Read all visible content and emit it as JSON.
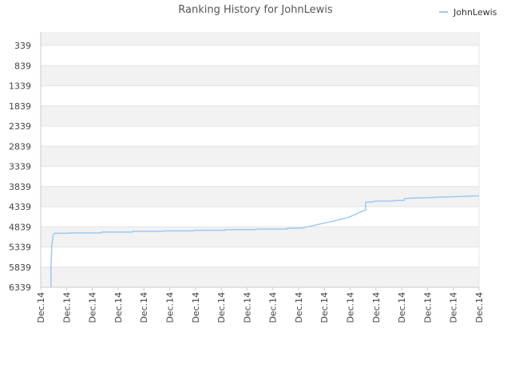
{
  "chart_data": {
    "type": "line",
    "title": "Ranking History for JohnLewis",
    "legend": {
      "position": "top-right",
      "entries": [
        "JohnLewis"
      ]
    },
    "colors": {
      "series": "#9ec9f1",
      "band": "#f2f2f2",
      "grid": "#e4e4e4",
      "axis": "#cccccc"
    },
    "y_axis": {
      "inverted": true,
      "range": [
        339,
        6339
      ],
      "ticks": [
        339,
        839,
        1339,
        1839,
        2339,
        2839,
        3339,
        3839,
        4339,
        4839,
        5339,
        5839,
        6339
      ]
    },
    "x_axis": {
      "range": [
        0,
        17
      ],
      "tick_labels": [
        "Dec.14",
        "Dec.14",
        "Dec.14",
        "Dec.14",
        "Dec.14",
        "Dec.14",
        "Dec.14",
        "Dec.14",
        "Dec.14",
        "Dec.14",
        "Dec.14",
        "Dec.14",
        "Dec.14",
        "Dec.14",
        "Dec.14",
        "Dec.14",
        "Dec.14",
        "Dec.14"
      ]
    },
    "series": [
      {
        "name": "JohnLewis",
        "points": [
          [
            0.4,
            6339
          ],
          [
            0.4,
            5800
          ],
          [
            0.43,
            5300
          ],
          [
            0.48,
            5050
          ],
          [
            0.53,
            5000
          ],
          [
            1.15,
            5000
          ],
          [
            1.15,
            4990
          ],
          [
            2.35,
            4990
          ],
          [
            2.35,
            4970
          ],
          [
            3.55,
            4970
          ],
          [
            3.55,
            4950
          ],
          [
            4.75,
            4950
          ],
          [
            4.75,
            4940
          ],
          [
            5.95,
            4940
          ],
          [
            5.95,
            4925
          ],
          [
            7.15,
            4925
          ],
          [
            7.15,
            4910
          ],
          [
            8.35,
            4910
          ],
          [
            8.35,
            4895
          ],
          [
            9.55,
            4895
          ],
          [
            9.55,
            4880
          ],
          [
            10.15,
            4870
          ],
          [
            10.75,
            4780
          ],
          [
            11.35,
            4700
          ],
          [
            11.95,
            4600
          ],
          [
            12.55,
            4430
          ],
          [
            12.6,
            4430
          ],
          [
            12.6,
            4230
          ],
          [
            12.9,
            4215
          ],
          [
            13.0,
            4200
          ],
          [
            13.7,
            4200
          ],
          [
            13.7,
            4185
          ],
          [
            14.1,
            4185
          ],
          [
            14.1,
            4140
          ],
          [
            14.4,
            4125
          ],
          [
            15.0,
            4115
          ],
          [
            15.6,
            4100
          ],
          [
            16.2,
            4090
          ],
          [
            16.7,
            4075
          ],
          [
            17.0,
            4070
          ]
        ]
      }
    ]
  }
}
